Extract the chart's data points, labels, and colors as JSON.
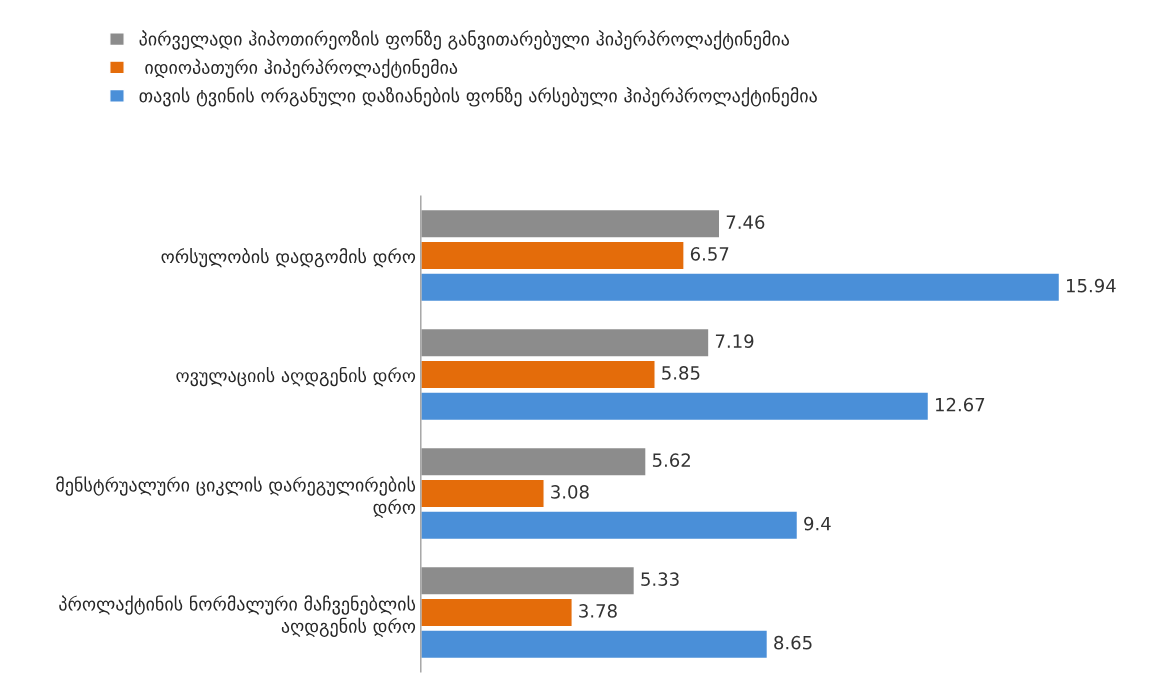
{
  "chart_data": {
    "type": "bar",
    "orientation": "horizontal",
    "data_labels": true,
    "legend": "top",
    "grid": false,
    "tick_labels": "y",
    "categories": [
      "ორსულობის დადგომის დრო",
      "ოვულაციის აღდგენის დრო",
      "მენსტრუალური ციკლის დარეგულირების\nდრო",
      "პროლაქტინის ნორმალური მაჩვენებლის\nაღდგენის დრო"
    ],
    "series": [
      {
        "name": "პირველადი ჰიპოთირეოზის ფონზე განვითარებული ჰიპერპროლაქტინემია",
        "color": "#8c8c8c",
        "values": [
          7.46,
          7.19,
          5.62,
          5.33
        ]
      },
      {
        "name": " იდიოპათური ჰიპერპროლაქტინემია",
        "color": "#e46c0a",
        "values": [
          6.57,
          5.85,
          3.08,
          3.78
        ]
      },
      {
        "name": "თავის ტვინის ორგანული დაზიანების ფონზე არსებული ჰიპერპროლაქტინემია",
        "color": "#4a8fd8",
        "values": [
          15.94,
          12.67,
          9.4,
          8.65
        ]
      }
    ]
  }
}
